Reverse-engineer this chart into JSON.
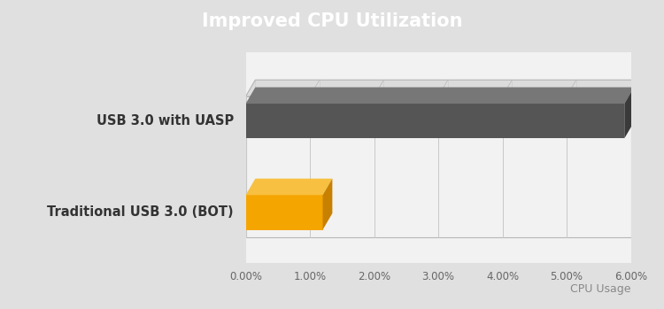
{
  "title": "Improved CPU Utilization",
  "xlabel": "CPU Usage",
  "categories": [
    "USB 3.0 with UASP",
    "Traditional USB 3.0 (BOT)"
  ],
  "values": [
    1.2,
    5.9
  ],
  "max_val": 6.0,
  "bar_face_colors": [
    "#F5A500",
    "#555555"
  ],
  "bar_top_colors": [
    "#F7C040",
    "#777777"
  ],
  "bar_side_colors": [
    "#C88000",
    "#3A3A3A"
  ],
  "xticks": [
    0.0,
    1.0,
    2.0,
    3.0,
    4.0,
    5.0,
    6.0
  ],
  "xtick_labels": [
    "0.00%",
    "1.00%",
    "2.00%",
    "3.00%",
    "4.00%",
    "5.00%",
    "6.00%"
  ],
  "title_bg_color": "#A8A8A8",
  "title_text_color": "#FFFFFF",
  "fig_bg_color": "#E0E0E0",
  "chart_bg_color": "#F2F2F2",
  "box_top_color": "#DCDCDC",
  "box_side_color": "#D0D0D0",
  "box_edge_color": "#B8B8B8",
  "grid_color": "#C8C8C8",
  "label_color": "#333333",
  "xlabel_color": "#888888"
}
